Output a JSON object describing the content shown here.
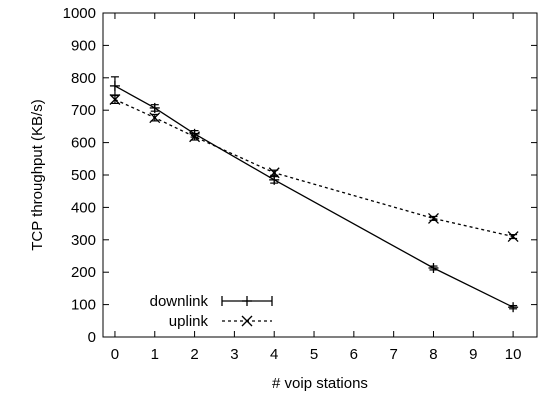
{
  "chart_data": {
    "type": "line",
    "xlabel": "# voip stations",
    "ylabel": "TCP throughput (KB/s)",
    "xlim": [
      -0.3,
      10.6
    ],
    "ylim": [
      0,
      1000
    ],
    "xticks": [
      0,
      1,
      2,
      3,
      4,
      5,
      6,
      7,
      8,
      9,
      10
    ],
    "yticks": [
      0,
      100,
      200,
      300,
      400,
      500,
      600,
      700,
      800,
      900,
      1000
    ],
    "legend_position": "bottom-left",
    "grid": false,
    "series": [
      {
        "name": "downlink",
        "style": "solid",
        "marker": "plus",
        "color": "#000000",
        "x": [
          0,
          1,
          2,
          4,
          8,
          10
        ],
        "y": [
          775,
          707,
          627,
          485,
          213,
          92
        ],
        "err": [
          28,
          10,
          10,
          10,
          6,
          5
        ]
      },
      {
        "name": "uplink",
        "style": "dashed",
        "marker": "cross",
        "color": "#000000",
        "x": [
          0,
          1,
          2,
          4,
          8,
          10
        ],
        "y": [
          733,
          677,
          618,
          507,
          366,
          310
        ],
        "err": [
          12,
          10,
          10,
          8,
          6,
          6
        ]
      }
    ]
  }
}
